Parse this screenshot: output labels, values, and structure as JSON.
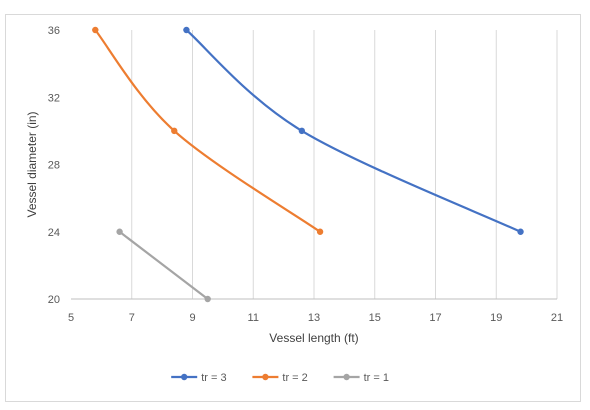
{
  "chart_data": {
    "type": "line",
    "title": "",
    "xlabel": "Vessel length (ft)",
    "ylabel": "Vessel diameter (in)",
    "xlim": [
      5,
      21
    ],
    "ylim": [
      20,
      36
    ],
    "xticks": [
      5,
      7,
      9,
      11,
      13,
      15,
      17,
      19,
      21
    ],
    "yticks": [
      20,
      24,
      28,
      32,
      36
    ],
    "x_grid": true,
    "y_grid": false,
    "smooth": true,
    "legend_position": "bottom",
    "series": [
      {
        "name": "tr = 3",
        "color": "#4472C4",
        "points": [
          [
            8.8,
            36
          ],
          [
            12.6,
            30
          ],
          [
            19.8,
            24
          ]
        ]
      },
      {
        "name": "tr = 2",
        "color": "#ED7D31",
        "points": [
          [
            5.8,
            36
          ],
          [
            8.4,
            30
          ],
          [
            13.2,
            24
          ]
        ]
      },
      {
        "name": "tr = 1",
        "color": "#A5A5A5",
        "points": [
          [
            6.6,
            24
          ],
          [
            9.5,
            20
          ]
        ]
      }
    ]
  }
}
